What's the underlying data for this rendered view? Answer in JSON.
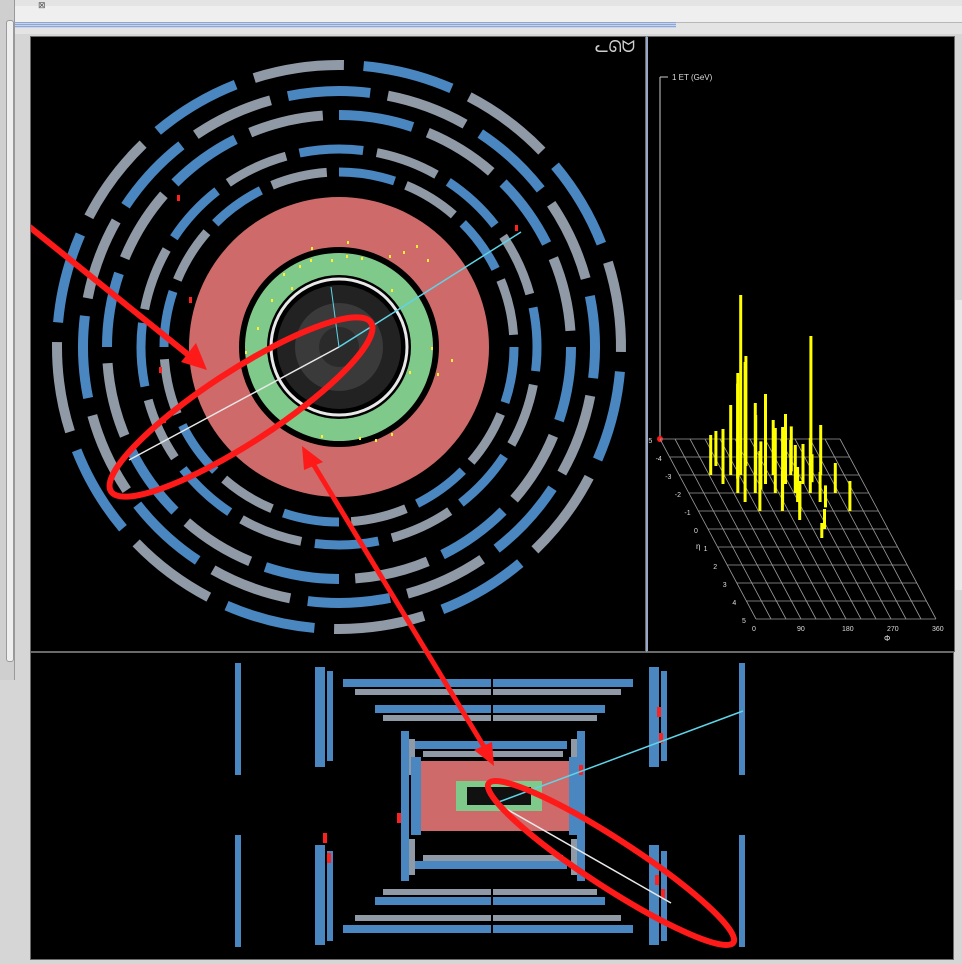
{
  "window": {
    "checkbox_glyph": "⊠",
    "logo_glyph": "ᓚᘏᗢ"
  },
  "views": {
    "xy": {
      "name": "transverse-view"
    },
    "rz": {
      "name": "longitudinal-view"
    },
    "lego": {
      "z_axis_label": "1 ET (GeV)",
      "eta_axis_label": "η",
      "phi_axis_label": "Φ",
      "eta_ticks": [
        "-5",
        "-4",
        "-3",
        "-2",
        "-1",
        "0",
        "1",
        "2",
        "3",
        "4",
        "5"
      ],
      "phi_ticks": [
        "0",
        "90",
        "180",
        "270",
        "360"
      ]
    }
  },
  "colors": {
    "background": "#000000",
    "calorimeter_hadronic": "#cf6a6a",
    "calorimeter_em": "#7fc98a",
    "muon_chamber_blue": "#4a86c0",
    "muon_chamber_grey": "#8f9aa6",
    "annotation_red": "#ff1a1a",
    "track_cyan": "#5fd4e8",
    "lego_bars": "#ffff00"
  }
}
